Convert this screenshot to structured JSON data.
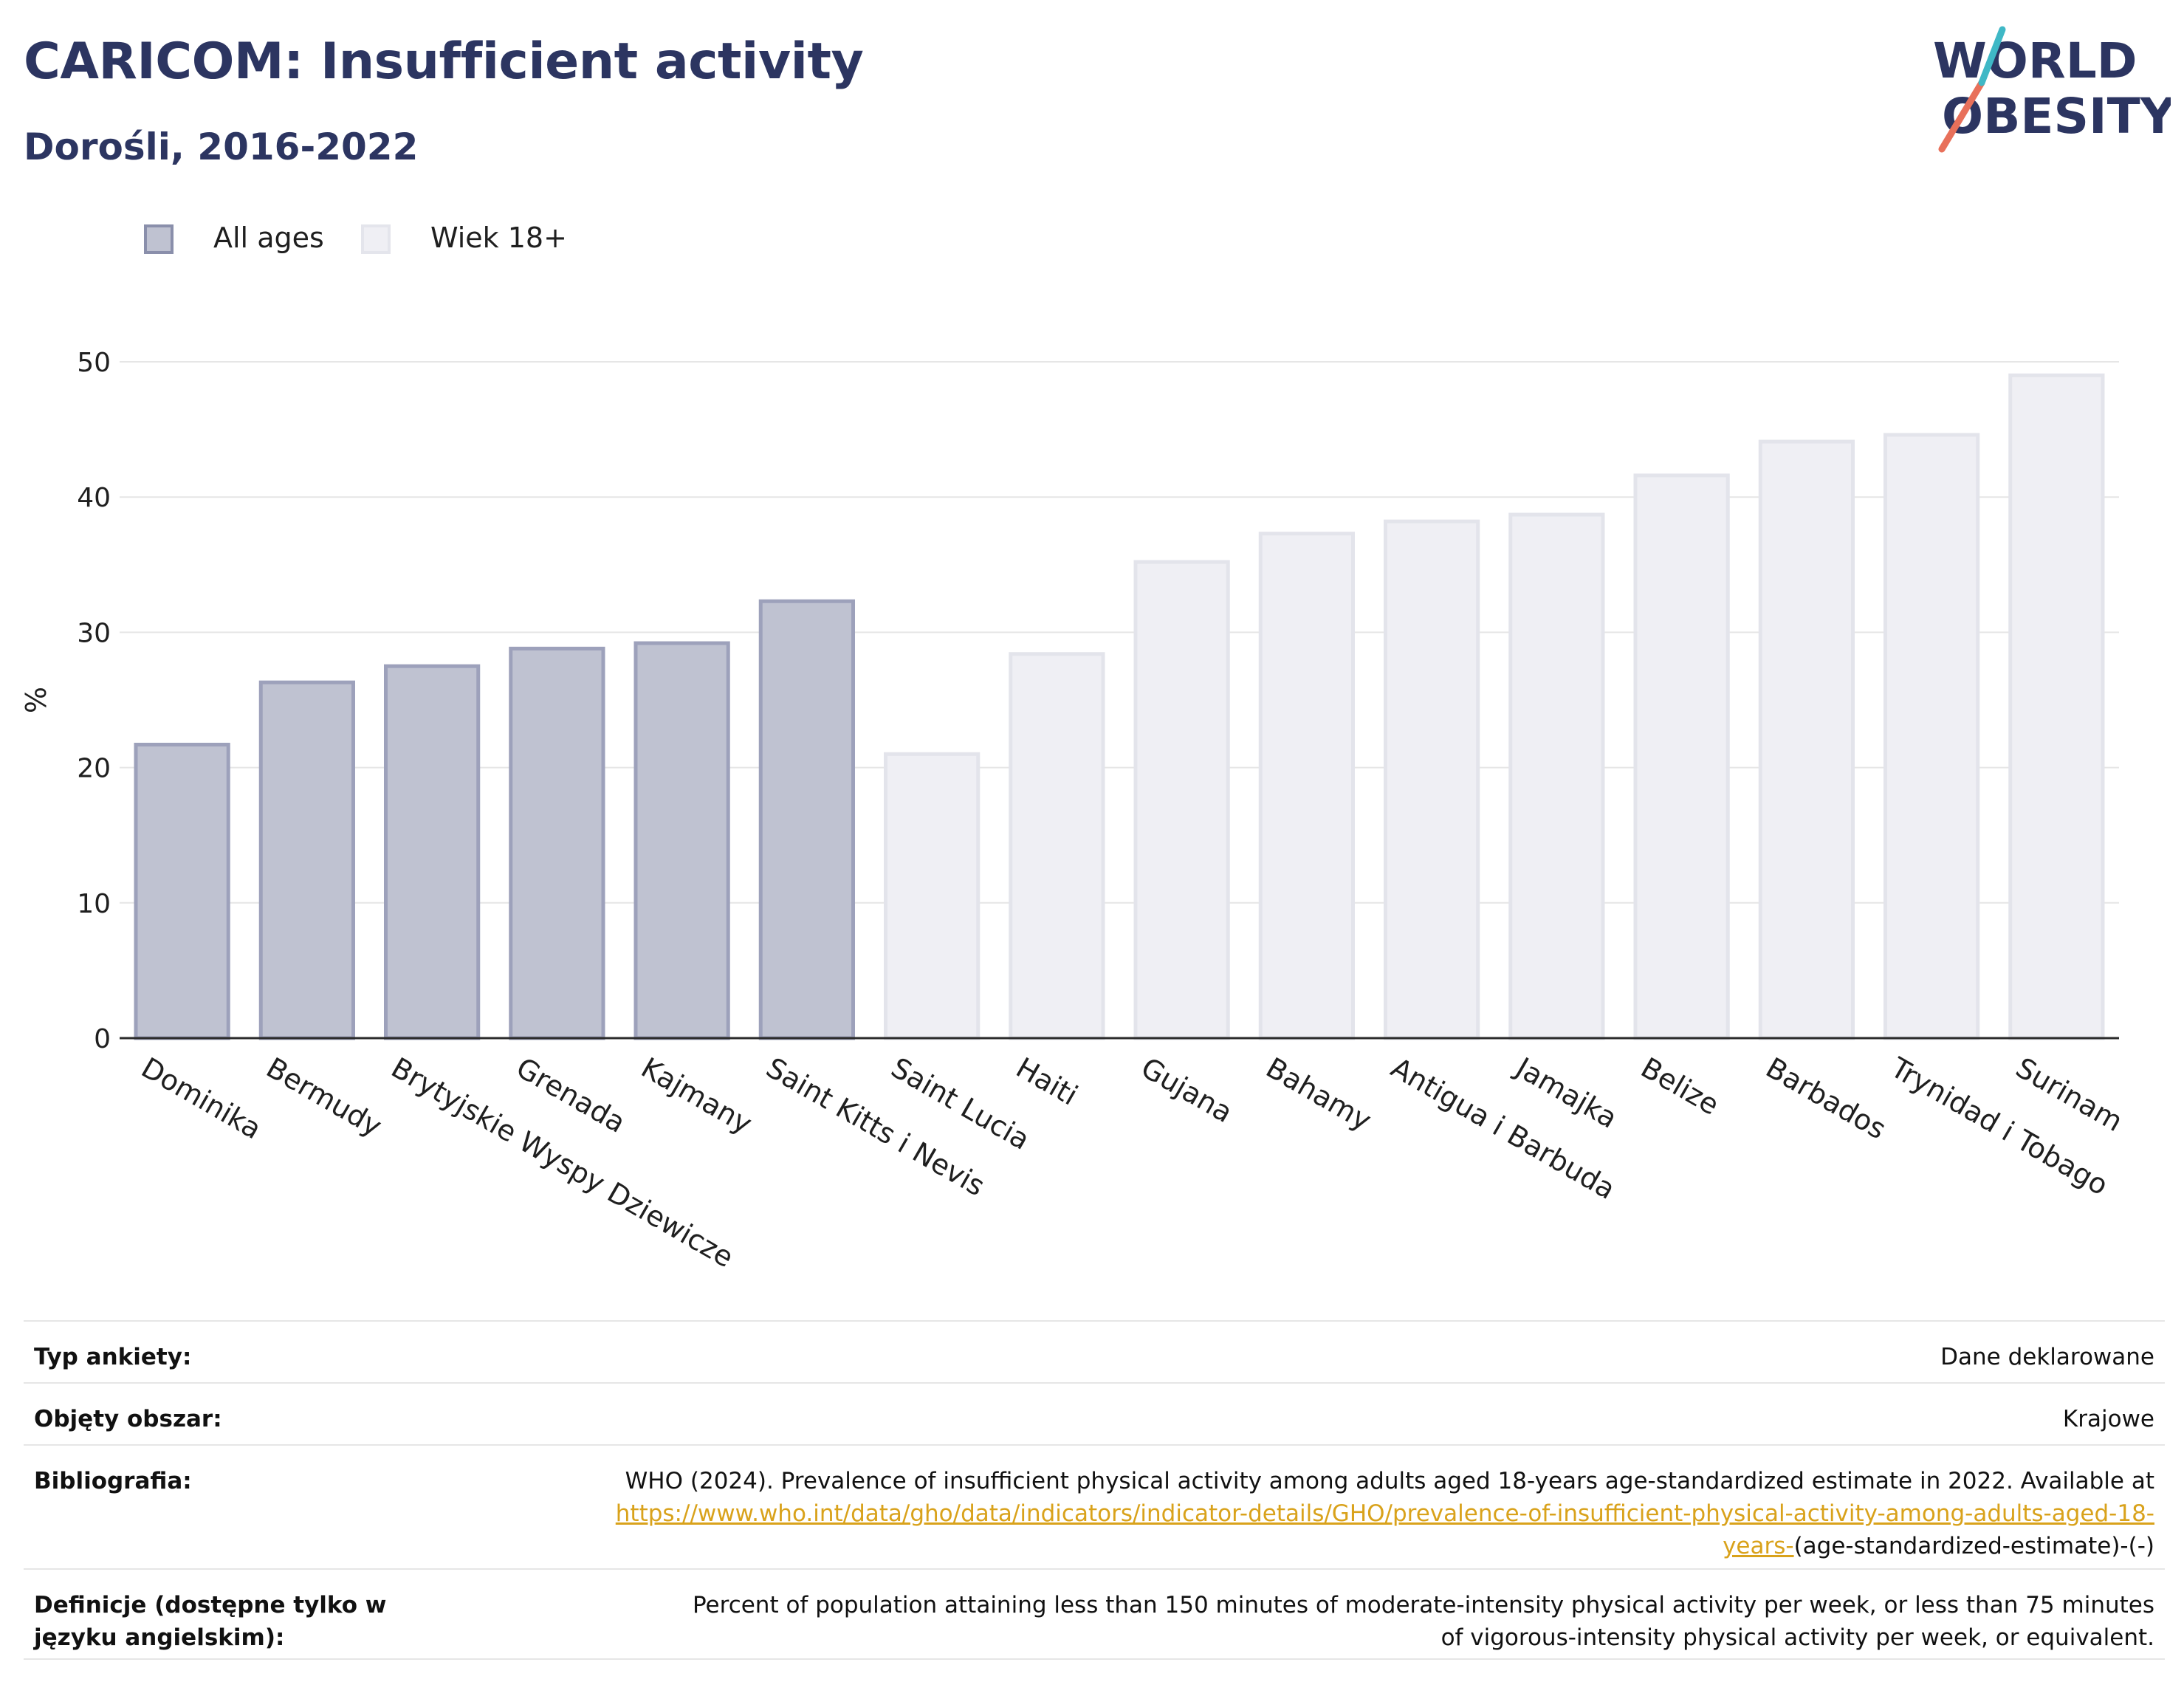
{
  "header": {
    "title": "CARICOM: Insufficient activity",
    "subtitle": "Dorośli, 2016-2022"
  },
  "logo": {
    "line1": "WORLD",
    "line2": "OBESITY",
    "colors": [
      "#2c3561",
      "#e8705a",
      "#3fb8c6"
    ]
  },
  "legend": {
    "items": [
      {
        "label": "All ages",
        "color": "#bfc2d1",
        "border": "#8a8fab"
      },
      {
        "label": "Wiek 18+",
        "color": "#efeff4",
        "border": "#e4e5ec"
      }
    ]
  },
  "chart_data": {
    "type": "bar",
    "ylabel": "%",
    "ylim": [
      0,
      50
    ],
    "yticks": [
      0,
      10,
      20,
      30,
      40,
      50
    ],
    "grid": true,
    "legend_position": "top-left",
    "categories": [
      "Dominika",
      "Bermudy",
      "Brytyjskie Wyspy Dziewicze",
      "Grenada",
      "Kajmany",
      "Saint Kitts i Nevis",
      "Saint Lucia",
      "Haiti",
      "Gujana",
      "Bahamy",
      "Antigua i Barbuda",
      "Jamajka",
      "Belize",
      "Barbados",
      "Trynidad i Tobago",
      "Surinam"
    ],
    "values": [
      21.7,
      26.3,
      27.5,
      28.8,
      29.2,
      32.3,
      21.0,
      28.4,
      35.2,
      37.3,
      38.2,
      38.7,
      41.6,
      44.1,
      44.6,
      49.0
    ],
    "series_membership": [
      "All ages",
      "All ages",
      "All ages",
      "All ages",
      "All ages",
      "All ages",
      "Wiek 18+",
      "Wiek 18+",
      "Wiek 18+",
      "Wiek 18+",
      "Wiek 18+",
      "Wiek 18+",
      "Wiek 18+",
      "Wiek 18+",
      "Wiek 18+",
      "Wiek 18+"
    ],
    "series_styles": {
      "All ages": {
        "fill": "#bfc2d1",
        "stroke": "#9da1bb"
      },
      "Wiek 18+": {
        "fill": "#efeff4",
        "stroke": "#e3e4eb"
      }
    }
  },
  "meta": {
    "survey_type": {
      "label": "Typ ankiety:",
      "value": "Dane deklarowane"
    },
    "coverage": {
      "label": "Objęty obszar:",
      "value": "Krajowe"
    },
    "bibliography": {
      "label": "Bibliografia:",
      "text": "WHO (2024). Prevalence of insufficient physical activity among adults aged 18-years age-standardized estimate in 2022. Available at",
      "link": "https://www.who.int/data/gho/data/indicators/indicator-details/GHO/prevalence-of-insufficient-physical-activity-among-adults-aged-18-years-",
      "suffix": "(age-standardized-estimate)-(-)"
    },
    "definitions": {
      "label": "Definicje (dostępne tylko w języku angielskim):",
      "value": "Percent of population attaining less than 150 minutes of moderate-intensity physical activity per week, or less than 75 minutes of vigorous-intensity physical activity per week, or equivalent."
    }
  }
}
